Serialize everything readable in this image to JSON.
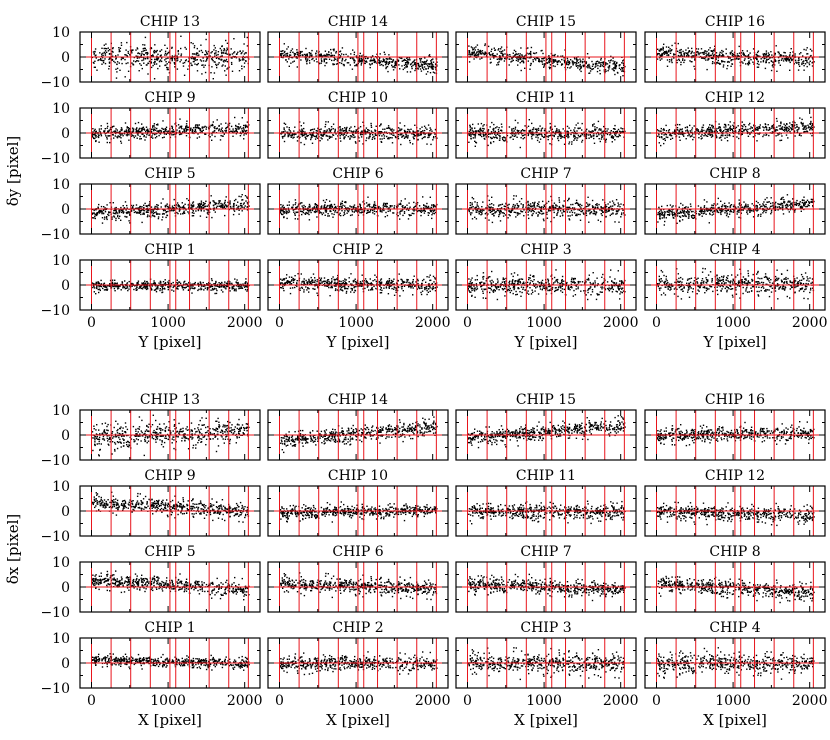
{
  "chart_data": [
    {
      "type": "scatter",
      "block": "top",
      "grid": "4x4 panels",
      "xlabel": "Y [pixel]",
      "ylabel": "δy [pixel]",
      "xlim": [
        -150,
        2200
      ],
      "ylim": [
        -10,
        10
      ],
      "xticks": [
        "0",
        "1000",
        "2000"
      ],
      "yticks": [
        "10",
        "0",
        "−10"
      ],
      "reference_lines": {
        "horizontal_y": 0,
        "vertical_x": [
          0,
          256,
          512,
          768,
          1024,
          1100,
          1280,
          1536,
          1792,
          2048
        ],
        "color": "#e8141b"
      },
      "panels": [
        {
          "title": "CHIP 13",
          "row": 0,
          "col": 0,
          "trend_start": 0,
          "trend_end": 0,
          "spread": 5.5
        },
        {
          "title": "CHIP 14",
          "row": 0,
          "col": 1,
          "trend_start": 1.5,
          "trend_end": -3.5,
          "spread": 3
        },
        {
          "title": "CHIP 15",
          "row": 0,
          "col": 2,
          "trend_start": 2,
          "trend_end": -4,
          "spread": 3
        },
        {
          "title": "CHIP 16",
          "row": 0,
          "col": 3,
          "trend_start": 1.5,
          "trend_end": -1,
          "spread": 3.5
        },
        {
          "title": "CHIP 9",
          "row": 1,
          "col": 0,
          "trend_start": 0,
          "trend_end": 2,
          "spread": 3
        },
        {
          "title": "CHIP 10",
          "row": 1,
          "col": 1,
          "trend_start": 0,
          "trend_end": 0,
          "spread": 3
        },
        {
          "title": "CHIP 11",
          "row": 1,
          "col": 2,
          "trend_start": 0,
          "trend_end": 0,
          "spread": 3.5
        },
        {
          "title": "CHIP 12",
          "row": 1,
          "col": 3,
          "trend_start": 0,
          "trend_end": 2.5,
          "spread": 3
        },
        {
          "title": "CHIP 5",
          "row": 2,
          "col": 0,
          "trend_start": -1.5,
          "trend_end": 2,
          "spread": 3
        },
        {
          "title": "CHIP 6",
          "row": 2,
          "col": 1,
          "trend_start": 0,
          "trend_end": 0.5,
          "spread": 3
        },
        {
          "title": "CHIP 7",
          "row": 2,
          "col": 2,
          "trend_start": 0,
          "trend_end": 0,
          "spread": 3.5
        },
        {
          "title": "CHIP 8",
          "row": 2,
          "col": 3,
          "trend_start": -2,
          "trend_end": 2.5,
          "spread": 3
        },
        {
          "title": "CHIP 1",
          "row": 3,
          "col": 0,
          "trend_start": 0,
          "trend_end": 0,
          "spread": 2
        },
        {
          "title": "CHIP 2",
          "row": 3,
          "col": 1,
          "trend_start": 1,
          "trend_end": 0,
          "spread": 3
        },
        {
          "title": "CHIP 3",
          "row": 3,
          "col": 2,
          "trend_start": 0,
          "trend_end": 0,
          "spread": 4
        },
        {
          "title": "CHIP 4",
          "row": 3,
          "col": 3,
          "trend_start": 0.5,
          "trend_end": 0.5,
          "spread": 4
        }
      ]
    },
    {
      "type": "scatter",
      "block": "bottom",
      "grid": "4x4 panels",
      "xlabel": "X [pixel]",
      "ylabel": "δx [pixel]",
      "xlim": [
        -150,
        2200
      ],
      "ylim": [
        -10,
        10
      ],
      "xticks": [
        "0",
        "1000",
        "2000"
      ],
      "yticks": [
        "10",
        "0",
        "−10"
      ],
      "reference_lines": {
        "horizontal_y": 0,
        "vertical_x": [
          0,
          256,
          512,
          768,
          1024,
          1100,
          1280,
          1536,
          1792,
          2048
        ],
        "color": "#e8141b"
      },
      "panels": [
        {
          "title": "CHIP 13",
          "row": 0,
          "col": 0,
          "trend_start": -1,
          "trend_end": 2,
          "spread": 5
        },
        {
          "title": "CHIP 14",
          "row": 0,
          "col": 1,
          "trend_start": -2,
          "trend_end": 3.5,
          "spread": 3
        },
        {
          "title": "CHIP 15",
          "row": 0,
          "col": 2,
          "trend_start": -1,
          "trend_end": 4,
          "spread": 3
        },
        {
          "title": "CHIP 16",
          "row": 0,
          "col": 3,
          "trend_start": 0,
          "trend_end": 1,
          "spread": 3
        },
        {
          "title": "CHIP 9",
          "row": 1,
          "col": 0,
          "trend_start": 3.5,
          "trend_end": 0,
          "spread": 3
        },
        {
          "title": "CHIP 10",
          "row": 1,
          "col": 1,
          "trend_start": -0.5,
          "trend_end": 0.5,
          "spread": 2.5
        },
        {
          "title": "CHIP 11",
          "row": 1,
          "col": 2,
          "trend_start": 0,
          "trend_end": 0,
          "spread": 3
        },
        {
          "title": "CHIP 12",
          "row": 1,
          "col": 3,
          "trend_start": 0,
          "trend_end": -1.5,
          "spread": 3
        },
        {
          "title": "CHIP 5",
          "row": 2,
          "col": 0,
          "trend_start": 3,
          "trend_end": -1,
          "spread": 3
        },
        {
          "title": "CHIP 6",
          "row": 2,
          "col": 1,
          "trend_start": 1.5,
          "trend_end": -0.5,
          "spread": 3
        },
        {
          "title": "CHIP 7",
          "row": 2,
          "col": 2,
          "trend_start": 1.5,
          "trend_end": -1,
          "spread": 3
        },
        {
          "title": "CHIP 8",
          "row": 2,
          "col": 3,
          "trend_start": 1.5,
          "trend_end": -2,
          "spread": 3
        },
        {
          "title": "CHIP 1",
          "row": 3,
          "col": 0,
          "trend_start": 1.5,
          "trend_end": 0,
          "spread": 2
        },
        {
          "title": "CHIP 2",
          "row": 3,
          "col": 1,
          "trend_start": 0,
          "trend_end": 0,
          "spread": 3
        },
        {
          "title": "CHIP 3",
          "row": 3,
          "col": 2,
          "trend_start": 0,
          "trend_end": 0,
          "spread": 4
        },
        {
          "title": "CHIP 4",
          "row": 3,
          "col": 3,
          "trend_start": 0,
          "trend_end": 0,
          "spread": 4
        }
      ]
    }
  ]
}
